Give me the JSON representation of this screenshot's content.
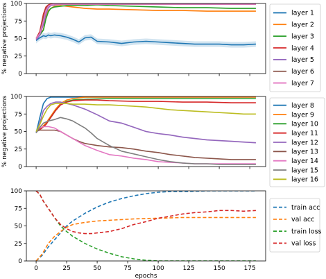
{
  "chart_data": [
    {
      "type": "line",
      "ylabel": "% negative projections",
      "ylim": [
        0,
        100
      ],
      "xlim": [
        -8,
        188
      ],
      "yticks": [
        0,
        25,
        50,
        75,
        100
      ],
      "xticks": [
        0,
        25,
        50,
        75,
        100,
        125,
        150,
        175
      ],
      "show_xtick_labels": false,
      "legend_position": "right",
      "series": [
        {
          "name": "layer 1",
          "color": "#1f77b4",
          "band": 4,
          "x": [
            0,
            2,
            4,
            6,
            8,
            10,
            12,
            15,
            20,
            25,
            30,
            35,
            40,
            45,
            50,
            60,
            70,
            80,
            90,
            100,
            110,
            120,
            130,
            140,
            150,
            160,
            170,
            180
          ],
          "y": [
            47,
            50,
            52,
            54,
            53,
            55,
            54,
            55,
            54,
            52,
            49,
            45,
            51,
            52,
            46,
            45,
            43,
            45,
            46,
            45,
            44,
            43,
            42,
            42,
            42,
            41,
            41,
            42
          ]
        },
        {
          "name": "layer 2",
          "color": "#ff7f0e",
          "band": 1,
          "x": [
            0,
            3,
            6,
            8,
            10,
            12,
            15,
            20,
            25,
            30,
            40,
            50,
            60,
            80,
            100,
            120,
            140,
            160,
            180
          ],
          "y": [
            50,
            55,
            63,
            80,
            90,
            93,
            96,
            97,
            96,
            95,
            93,
            92,
            92,
            91,
            90,
            90,
            89,
            89,
            89
          ]
        },
        {
          "name": "layer 3",
          "color": "#2ca02c",
          "band": 1,
          "x": [
            0,
            3,
            6,
            8,
            10,
            12,
            15,
            20,
            25,
            30,
            40,
            50,
            60,
            80,
            100,
            120,
            140,
            160,
            180
          ],
          "y": [
            50,
            55,
            62,
            78,
            88,
            93,
            95,
            96,
            97,
            97,
            97,
            98,
            97,
            96,
            95,
            94,
            94,
            93,
            93
          ]
        },
        {
          "name": "layer 4",
          "color": "#d62728",
          "band": 0,
          "x": [
            0,
            3,
            6,
            8,
            10,
            12,
            15,
            20,
            30,
            40,
            60,
            80,
            100,
            120,
            140,
            160,
            180
          ],
          "y": [
            50,
            60,
            85,
            95,
            98,
            99,
            99,
            99,
            99,
            99,
            99,
            99,
            99,
            99,
            99,
            99,
            99
          ]
        },
        {
          "name": "layer 5",
          "color": "#9467bd",
          "band": 1,
          "x": [
            0,
            3,
            6,
            8,
            10,
            12,
            15,
            20,
            30,
            40,
            60,
            80,
            100,
            120,
            140,
            160,
            180
          ],
          "y": [
            48,
            55,
            70,
            85,
            94,
            97,
            98,
            99,
            99,
            99,
            99,
            99,
            99,
            99,
            99,
            99,
            99
          ]
        },
        {
          "name": "layer 6",
          "color": "#8c564b",
          "band": 0,
          "x": [
            0,
            3,
            6,
            8,
            10,
            12,
            15,
            20,
            30,
            40,
            60,
            80,
            100,
            120,
            140,
            160,
            180
          ],
          "y": [
            50,
            58,
            80,
            92,
            97,
            98,
            99,
            99,
            99,
            99,
            99,
            99,
            99,
            99,
            99,
            99,
            99
          ]
        },
        {
          "name": "layer 7",
          "color": "#e377c2",
          "band": 0,
          "x": [
            0,
            3,
            6,
            8,
            10,
            12,
            15,
            20,
            30,
            40,
            60,
            80,
            100,
            120,
            140,
            160,
            180
          ],
          "y": [
            50,
            57,
            75,
            90,
            96,
            98,
            99,
            99,
            99,
            99,
            99,
            99,
            99,
            99,
            99,
            99,
            99
          ]
        }
      ]
    },
    {
      "type": "line",
      "ylabel": "% negative projections",
      "ylim": [
        0,
        100
      ],
      "xlim": [
        -8,
        188
      ],
      "yticks": [
        0,
        25,
        50,
        75,
        100
      ],
      "xticks": [
        0,
        25,
        50,
        75,
        100,
        125,
        150,
        175
      ],
      "show_xtick_labels": false,
      "legend_position": "right",
      "series": [
        {
          "name": "layer 8",
          "color": "#1f77b4",
          "band": 0,
          "x": [
            0,
            3,
            6,
            9,
            12,
            15,
            20,
            30,
            40,
            60,
            80,
            100,
            120,
            140,
            160,
            180
          ],
          "y": [
            48,
            70,
            90,
            97,
            99,
            99,
            99,
            99,
            99,
            99,
            99,
            99,
            99,
            99,
            99,
            99
          ]
        },
        {
          "name": "layer 9",
          "color": "#ff7f0e",
          "band": 0,
          "x": [
            0,
            4,
            8,
            12,
            16,
            20,
            25,
            30,
            40,
            60,
            80,
            100,
            120,
            140,
            160,
            180
          ],
          "y": [
            50,
            55,
            62,
            72,
            82,
            90,
            95,
            97,
            99,
            99,
            99,
            99,
            99,
            99,
            99,
            99
          ]
        },
        {
          "name": "layer 10",
          "color": "#2ca02c",
          "band": 0,
          "x": [
            0,
            4,
            8,
            12,
            16,
            20,
            25,
            30,
            40,
            60,
            80,
            100,
            120,
            140,
            160,
            180
          ],
          "y": [
            50,
            54,
            60,
            70,
            80,
            88,
            93,
            95,
            96,
            97,
            97,
            97,
            97,
            97,
            97,
            97
          ]
        },
        {
          "name": "layer 11",
          "color": "#d62728",
          "band": 0,
          "x": [
            0,
            4,
            8,
            12,
            16,
            20,
            25,
            30,
            40,
            50,
            60,
            80,
            100,
            120,
            140,
            160,
            180
          ],
          "y": [
            50,
            54,
            60,
            70,
            80,
            88,
            92,
            94,
            95,
            95,
            94,
            93,
            93,
            92,
            92,
            91,
            91
          ]
        },
        {
          "name": "layer 12",
          "color": "#9467bd",
          "band": 1,
          "x": [
            0,
            3,
            6,
            9,
            12,
            16,
            20,
            25,
            30,
            40,
            50,
            60,
            70,
            80,
            90,
            100,
            110,
            120,
            130,
            140,
            150,
            160,
            170,
            180
          ],
          "y": [
            48,
            62,
            80,
            86,
            90,
            92,
            92,
            90,
            88,
            82,
            74,
            65,
            62,
            56,
            50,
            47,
            45,
            42,
            40,
            38,
            37,
            36,
            35,
            34
          ]
        },
        {
          "name": "layer 13",
          "color": "#8c564b",
          "band": 0,
          "x": [
            0,
            3,
            6,
            10,
            15,
            20,
            25,
            30,
            35,
            40,
            50,
            60,
            70,
            80,
            90,
            100,
            110,
            120,
            130,
            140,
            150,
            160,
            170,
            180
          ],
          "y": [
            50,
            52,
            52,
            52,
            52,
            50,
            45,
            40,
            36,
            33,
            30,
            28,
            27,
            25,
            22,
            20,
            17,
            15,
            13,
            12,
            11,
            10,
            10,
            10
          ]
        },
        {
          "name": "layer 14",
          "color": "#e377c2",
          "band": 0,
          "x": [
            0,
            3,
            6,
            10,
            15,
            20,
            25,
            30,
            35,
            40,
            50,
            60,
            70,
            80,
            90,
            100,
            110,
            120,
            130,
            140,
            150,
            160,
            170,
            180
          ],
          "y": [
            50,
            55,
            57,
            57,
            55,
            50,
            45,
            40,
            35,
            30,
            23,
            17,
            15,
            12,
            10,
            7,
            6,
            5,
            4,
            4,
            4,
            4,
            4,
            4
          ]
        },
        {
          "name": "layer 15",
          "color": "#7f7f7f",
          "band": 0,
          "x": [
            0,
            3,
            6,
            10,
            15,
            20,
            25,
            30,
            35,
            40,
            45,
            50,
            60,
            70,
            80,
            90,
            100,
            110,
            120,
            130,
            140,
            150,
            160,
            170,
            180
          ],
          "y": [
            48,
            56,
            62,
            65,
            67,
            70,
            68,
            65,
            60,
            55,
            48,
            40,
            30,
            22,
            18,
            14,
            10,
            7,
            5,
            4,
            4,
            3,
            3,
            3,
            3
          ]
        },
        {
          "name": "layer 16",
          "color": "#bcbd22",
          "band": 0,
          "x": [
            0,
            3,
            6,
            9,
            12,
            16,
            20,
            25,
            30,
            40,
            50,
            60,
            70,
            80,
            90,
            100,
            110,
            120,
            130,
            140,
            150,
            160,
            170,
            180
          ],
          "y": [
            50,
            60,
            72,
            82,
            88,
            90,
            90,
            90,
            89,
            89,
            88,
            88,
            87,
            86,
            85,
            83,
            81,
            80,
            79,
            78,
            77,
            76,
            75,
            75
          ]
        }
      ]
    },
    {
      "type": "line",
      "xlabel": "epochs",
      "ylim": [
        0,
        100
      ],
      "xlim": [
        -8,
        188
      ],
      "yticks": [
        0,
        25,
        50,
        75,
        100
      ],
      "xticks": [
        0,
        25,
        50,
        75,
        100,
        125,
        150,
        175
      ],
      "show_xtick_labels": true,
      "legend_position": "right",
      "dashed": true,
      "series": [
        {
          "name": "train acc",
          "color": "#1f77b4",
          "x": [
            0,
            5,
            10,
            15,
            20,
            25,
            30,
            40,
            50,
            60,
            70,
            80,
            90,
            100,
            110,
            120,
            140,
            160,
            180
          ],
          "y": [
            0,
            8,
            20,
            30,
            40,
            50,
            57,
            68,
            77,
            84,
            89,
            93,
            96,
            98,
            99,
            99,
            100,
            100,
            100
          ]
        },
        {
          "name": "val acc",
          "color": "#ff7f0e",
          "x": [
            0,
            5,
            10,
            15,
            20,
            25,
            30,
            40,
            50,
            60,
            70,
            80,
            100,
            120,
            140,
            160,
            180
          ],
          "y": [
            0,
            10,
            25,
            35,
            42,
            48,
            52,
            55,
            57,
            58,
            59,
            60,
            61,
            62,
            62,
            62,
            62
          ]
        },
        {
          "name": "train loss",
          "color": "#2ca02c",
          "x": [
            0,
            3,
            6,
            10,
            15,
            20,
            25,
            30,
            40,
            50,
            60,
            70,
            80,
            90,
            100,
            120,
            140,
            160,
            180
          ],
          "y": [
            100,
            95,
            85,
            75,
            62,
            50,
            42,
            35,
            25,
            17,
            11,
            6,
            3,
            1,
            0,
            0,
            0,
            0,
            0
          ]
        },
        {
          "name": "val loss",
          "color": "#d62728",
          "x": [
            0,
            3,
            6,
            10,
            15,
            20,
            25,
            30,
            35,
            40,
            45,
            50,
            60,
            70,
            80,
            90,
            100,
            110,
            120,
            130,
            140,
            150,
            160,
            170,
            180
          ],
          "y": [
            100,
            95,
            85,
            75,
            62,
            52,
            46,
            42,
            40,
            39,
            39,
            40,
            42,
            46,
            52,
            56,
            61,
            64,
            67,
            69,
            70,
            72,
            72,
            71,
            72
          ]
        }
      ]
    }
  ]
}
